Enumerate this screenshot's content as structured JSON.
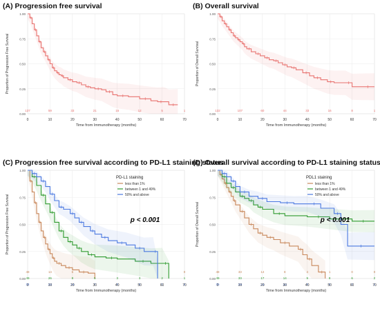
{
  "chart_data": [
    {
      "type": "line",
      "title": "(A) Progression free survival",
      "xlabel": "Time from Immunotherapy (months)",
      "ylabel": "Proportion of Progression Free Survival",
      "xlim": [
        0,
        70
      ],
      "ylim": [
        0,
        1
      ],
      "x_ticks": [
        "0",
        "10",
        "20",
        "30",
        "40",
        "50",
        "60",
        "70"
      ],
      "y_ticks": [
        "0.00",
        "0.25",
        "0.50",
        "0.75",
        "1.00"
      ],
      "grid": true,
      "series": [
        {
          "color": "#e8726f",
          "risk_numbers": [
            "137",
            "59",
            "33",
            "21",
            "15",
            "12",
            "5",
            "1"
          ],
          "points": [
            [
              0,
              1.0
            ],
            [
              1,
              0.96
            ],
            [
              2,
              0.9
            ],
            [
              3,
              0.84
            ],
            [
              4,
              0.78
            ],
            [
              5,
              0.72
            ],
            [
              6,
              0.66
            ],
            [
              7,
              0.62
            ],
            [
              8,
              0.58
            ],
            [
              9,
              0.54
            ],
            [
              10,
              0.5
            ],
            [
              11,
              0.46
            ],
            [
              12,
              0.43
            ],
            [
              13,
              0.41
            ],
            [
              14,
              0.39
            ],
            [
              15,
              0.38
            ],
            [
              16,
              0.36
            ],
            [
              18,
              0.34
            ],
            [
              20,
              0.32
            ],
            [
              22,
              0.31
            ],
            [
              24,
              0.29
            ],
            [
              26,
              0.27
            ],
            [
              28,
              0.26
            ],
            [
              30,
              0.25
            ],
            [
              33,
              0.24
            ],
            [
              35,
              0.22
            ],
            [
              38,
              0.19
            ],
            [
              40,
              0.18
            ],
            [
              45,
              0.17
            ],
            [
              50,
              0.15
            ],
            [
              55,
              0.13
            ],
            [
              58,
              0.12
            ],
            [
              61,
              0.12
            ],
            [
              63,
              0.09
            ],
            [
              67,
              0.09
            ]
          ]
        }
      ]
    },
    {
      "type": "line",
      "title": "(B) Overall survival",
      "xlabel": "Time from Immunotherapy (months)",
      "ylabel": "Proportion of Overall Survival",
      "xlim": [
        0,
        70
      ],
      "ylim": [
        0,
        1
      ],
      "x_ticks": [
        "0",
        "10",
        "20",
        "30",
        "40",
        "50",
        "60",
        "70"
      ],
      "y_ticks": [
        "0.00",
        "0.25",
        "0.50",
        "0.75",
        "1.00"
      ],
      "grid": true,
      "series": [
        {
          "color": "#e8726f",
          "risk_numbers": [
            "132",
            "107",
            "60",
            "44",
            "33",
            "16",
            "8",
            "1"
          ],
          "points": [
            [
              0,
              1.0
            ],
            [
              1,
              0.97
            ],
            [
              2,
              0.93
            ],
            [
              3,
              0.9
            ],
            [
              4,
              0.87
            ],
            [
              5,
              0.84
            ],
            [
              6,
              0.81
            ],
            [
              7,
              0.78
            ],
            [
              8,
              0.76
            ],
            [
              9,
              0.74
            ],
            [
              10,
              0.72
            ],
            [
              11,
              0.7
            ],
            [
              12,
              0.67
            ],
            [
              13,
              0.65
            ],
            [
              15,
              0.62
            ],
            [
              17,
              0.6
            ],
            [
              19,
              0.58
            ],
            [
              21,
              0.56
            ],
            [
              23,
              0.54
            ],
            [
              25,
              0.53
            ],
            [
              27,
              0.51
            ],
            [
              29,
              0.49
            ],
            [
              31,
              0.47
            ],
            [
              33,
              0.46
            ],
            [
              35,
              0.44
            ],
            [
              38,
              0.41
            ],
            [
              41,
              0.38
            ],
            [
              43,
              0.36
            ],
            [
              46,
              0.34
            ],
            [
              49,
              0.32
            ],
            [
              52,
              0.31
            ],
            [
              57,
              0.31
            ],
            [
              60,
              0.27
            ],
            [
              64,
              0.27
            ],
            [
              70,
              0.27
            ]
          ]
        }
      ]
    },
    {
      "type": "line",
      "title": "(C) Progression free survival according to PD-L1 staining status",
      "xlabel": "Time from Immunotherapy (months)",
      "ylabel": "Proportion of Progression Free Survival",
      "xlim": [
        0,
        70
      ],
      "ylim": [
        0,
        1
      ],
      "x_ticks": [
        "0",
        "10",
        "20",
        "30",
        "40",
        "50",
        "60",
        "70"
      ],
      "y_ticks": [
        "0.00",
        "0.25",
        "0.50",
        "0.75",
        "1.00"
      ],
      "grid": true,
      "legend_title": "PD-L1 staining",
      "legend_position": "top-right",
      "annotation": "p < 0.001",
      "series": [
        {
          "name": "less than 1%",
          "color": "#c8875a",
          "risk_numbers": [
            "48",
            "14",
            "6",
            "",
            "",
            "",
            "",
            "0"
          ],
          "points": [
            [
              0,
              1.0
            ],
            [
              1,
              0.9
            ],
            [
              2,
              0.8
            ],
            [
              3,
              0.7
            ],
            [
              4,
              0.6
            ],
            [
              5,
              0.52
            ],
            [
              6,
              0.44
            ],
            [
              7,
              0.38
            ],
            [
              8,
              0.32
            ],
            [
              9,
              0.27
            ],
            [
              10,
              0.23
            ],
            [
              11,
              0.19
            ],
            [
              12,
              0.16
            ],
            [
              13,
              0.14
            ],
            [
              15,
              0.12
            ],
            [
              17,
              0.1
            ],
            [
              20,
              0.08
            ],
            [
              23,
              0.06
            ],
            [
              27,
              0.05
            ],
            [
              30,
              0.0
            ]
          ]
        },
        {
          "name": "between 1 and 49%",
          "color": "#2e9a2e",
          "risk_numbers": [
            "49",
            "26",
            "8",
            "5",
            "3",
            "3",
            "2",
            "1"
          ],
          "points": [
            [
              0,
              1.0
            ],
            [
              2,
              0.94
            ],
            [
              4,
              0.86
            ],
            [
              6,
              0.77
            ],
            [
              8,
              0.69
            ],
            [
              10,
              0.61
            ],
            [
              12,
              0.52
            ],
            [
              14,
              0.44
            ],
            [
              16,
              0.38
            ],
            [
              18,
              0.34
            ],
            [
              20,
              0.31
            ],
            [
              22,
              0.28
            ],
            [
              24,
              0.25
            ],
            [
              27,
              0.22
            ],
            [
              30,
              0.2
            ],
            [
              35,
              0.19
            ],
            [
              40,
              0.18
            ],
            [
              48,
              0.16
            ],
            [
              55,
              0.14
            ],
            [
              60,
              0.14
            ],
            [
              63,
              0.0
            ]
          ]
        },
        {
          "name": "50% and above",
          "color": "#4a78e0",
          "risk_numbers": [
            "34",
            "22",
            "14",
            "7",
            "6",
            "5",
            "1",
            "0"
          ],
          "points": [
            [
              0,
              1.0
            ],
            [
              2,
              0.97
            ],
            [
              4,
              0.94
            ],
            [
              6,
              0.9
            ],
            [
              8,
              0.85
            ],
            [
              10,
              0.78
            ],
            [
              12,
              0.72
            ],
            [
              14,
              0.66
            ],
            [
              16,
              0.64
            ],
            [
              19,
              0.6
            ],
            [
              21,
              0.56
            ],
            [
              23,
              0.52
            ],
            [
              25,
              0.48
            ],
            [
              28,
              0.44
            ],
            [
              30,
              0.41
            ],
            [
              33,
              0.38
            ],
            [
              36,
              0.35
            ],
            [
              40,
              0.33
            ],
            [
              44,
              0.31
            ],
            [
              48,
              0.28
            ],
            [
              52,
              0.25
            ],
            [
              56,
              0.25
            ],
            [
              58,
              0.0
            ]
          ]
        }
      ]
    },
    {
      "type": "line",
      "title": "(D) Overall survival according to PD-L1 staining status",
      "xlabel": "Time from Immunotherapy (months)",
      "ylabel": "Proportion of Overall Survival",
      "xlim": [
        0,
        70
      ],
      "ylim": [
        0,
        1
      ],
      "x_ticks": [
        "0",
        "10",
        "20",
        "30",
        "40",
        "50",
        "60",
        "70"
      ],
      "y_ticks": [
        "0.00",
        "0.25",
        "0.50",
        "0.75",
        "1.00"
      ],
      "grid": true,
      "legend_title": "PDL1 staining",
      "legend_position": "top-right",
      "annotation": "p < 0.001",
      "series": [
        {
          "name": "less than 1%",
          "color": "#c8875a",
          "risk_numbers": [
            "48",
            "33",
            "14",
            "8",
            "4",
            "1",
            "0",
            "0"
          ],
          "points": [
            [
              0,
              1.0
            ],
            [
              1,
              0.96
            ],
            [
              2,
              0.92
            ],
            [
              3,
              0.88
            ],
            [
              4,
              0.84
            ],
            [
              5,
              0.8
            ],
            [
              6,
              0.76
            ],
            [
              7,
              0.72
            ],
            [
              8,
              0.68
            ],
            [
              10,
              0.62
            ],
            [
              12,
              0.56
            ],
            [
              14,
              0.5
            ],
            [
              16,
              0.46
            ],
            [
              18,
              0.42
            ],
            [
              20,
              0.4
            ],
            [
              22,
              0.38
            ],
            [
              25,
              0.36
            ],
            [
              28,
              0.33
            ],
            [
              32,
              0.3
            ],
            [
              36,
              0.27
            ],
            [
              38,
              0.22
            ],
            [
              40,
              0.18
            ],
            [
              42,
              0.12
            ],
            [
              45,
              0.06
            ],
            [
              48,
              0.0
            ]
          ]
        },
        {
          "name": "between 1 and 49%",
          "color": "#2e9a2e",
          "risk_numbers": [
            "49",
            "33",
            "17",
            "14",
            "9",
            "8",
            "6",
            "2"
          ],
          "points": [
            [
              0,
              1.0
            ],
            [
              2,
              0.94
            ],
            [
              4,
              0.88
            ],
            [
              6,
              0.84
            ],
            [
              8,
              0.8
            ],
            [
              10,
              0.76
            ],
            [
              12,
              0.74
            ],
            [
              14,
              0.72
            ],
            [
              16,
              0.68
            ],
            [
              18,
              0.66
            ],
            [
              20,
              0.64
            ],
            [
              25,
              0.6
            ],
            [
              30,
              0.58
            ],
            [
              40,
              0.57
            ],
            [
              50,
              0.55
            ],
            [
              60,
              0.53
            ],
            [
              70,
              0.53
            ]
          ]
        },
        {
          "name": "50% and above",
          "color": "#4a78e0",
          "risk_numbers": [
            "35",
            "29",
            "21",
            "12",
            "6",
            "6",
            "2",
            "1"
          ],
          "points": [
            [
              0,
              1.0
            ],
            [
              2,
              0.97
            ],
            [
              4,
              0.94
            ],
            [
              6,
              0.9
            ],
            [
              8,
              0.85
            ],
            [
              10,
              0.8
            ],
            [
              14,
              0.76
            ],
            [
              18,
              0.74
            ],
            [
              22,
              0.71
            ],
            [
              28,
              0.7
            ],
            [
              34,
              0.69
            ],
            [
              40,
              0.69
            ],
            [
              46,
              0.65
            ],
            [
              52,
              0.6
            ],
            [
              55,
              0.5
            ],
            [
              58,
              0.3
            ],
            [
              70,
              0.3
            ]
          ]
        }
      ]
    }
  ]
}
